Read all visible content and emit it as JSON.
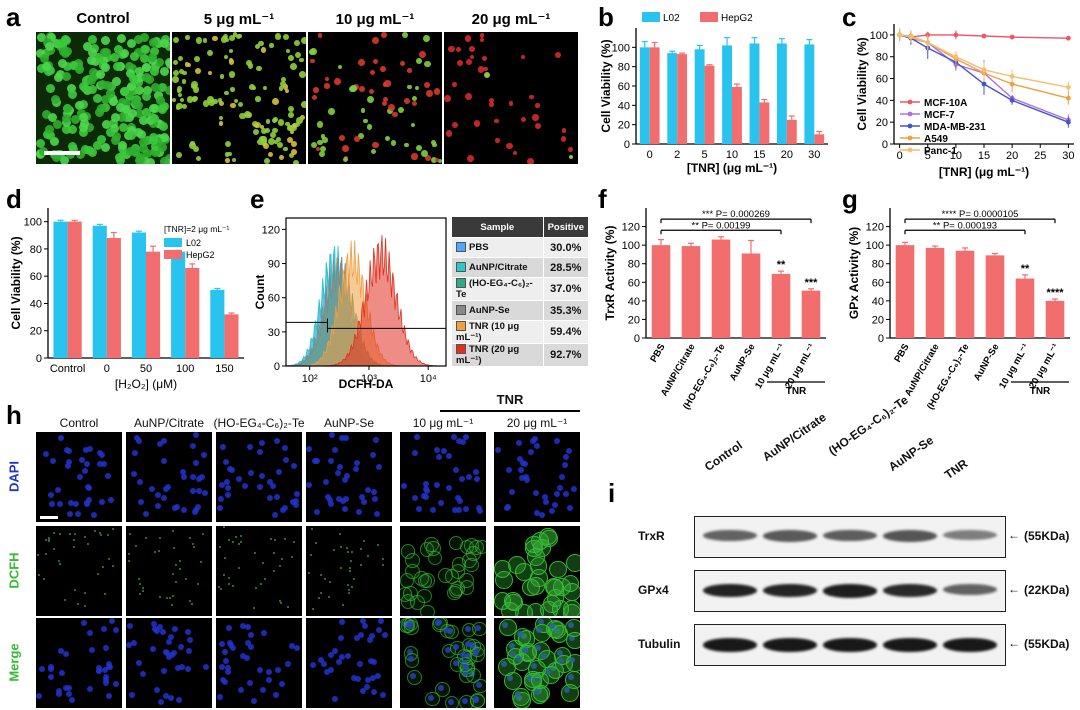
{
  "panels": {
    "a": {
      "letter": "a",
      "labels": [
        "Control",
        "5 μg mL⁻¹",
        "10 μg mL⁻¹",
        "20 μg mL⁻¹"
      ],
      "dot_density": [
        1.0,
        0.55,
        0.3,
        0.15
      ]
    },
    "h": {
      "letter": "h",
      "columns": [
        "Control",
        "AuNP/Citrate",
        "(HO-EG₄-C₆)₂-Te",
        "AuNP-Se",
        "10 μg mL⁻¹",
        "20 μg mL⁻¹"
      ],
      "group_label": "TNR",
      "rows": [
        "DAPI",
        "DCFH",
        "Merge"
      ],
      "dcfh_intensity": [
        0.05,
        0.08,
        0.06,
        0.07,
        0.45,
        0.95
      ],
      "colors": {
        "dapi": "#2233cc",
        "dcfh": "#33bb33"
      }
    },
    "i": {
      "letter": "i",
      "lanes": [
        "Control",
        "AuNP/Citrate",
        "(HO-EG₄-C₆)₂-Te",
        "AuNP-Se",
        "TNR"
      ],
      "proteins": [
        "TrxR",
        "GPx4",
        "Tubulin"
      ],
      "sizes": [
        "(55KDa)",
        "(22KDa)",
        "(55KDa)"
      ],
      "band_intensity": {
        "TrxR": [
          0.55,
          0.6,
          0.58,
          0.62,
          0.4
        ],
        "GPx4": [
          0.9,
          0.88,
          0.92,
          0.86,
          0.55
        ],
        "Tubulin": [
          0.95,
          0.95,
          0.95,
          0.95,
          0.95
        ]
      }
    },
    "e_table": {
      "header": [
        "Sample",
        "Positive"
      ],
      "rows": [
        {
          "sample": "PBS",
          "positive": "30.0%",
          "color": "#4da6ff"
        },
        {
          "sample": "AuNP/Citrate",
          "positive": "28.5%",
          "color": "#29c9c9"
        },
        {
          "sample": "(HO-EG₄-C₆)₂-Te",
          "positive": "37.0%",
          "color": "#2eaa8a"
        },
        {
          "sample": "AuNP-Se",
          "positive": "35.3%",
          "color": "#888888"
        },
        {
          "sample": "TNR (10 μg mL⁻¹)",
          "positive": "59.4%",
          "color": "#f0a040"
        },
        {
          "sample": "TNR (20 μg mL⁻¹)",
          "positive": "92.7%",
          "color": "#e03020"
        }
      ]
    }
  },
  "chart_data": [
    {
      "id": "b",
      "letter": "b",
      "type": "bar",
      "categories": [
        "0",
        "2",
        "5",
        "10",
        "15",
        "20",
        "30"
      ],
      "xlabel": "[TNR] (μg mL⁻¹)",
      "ylabel": "Cell Viability (%)",
      "ylim": [
        0,
        120
      ],
      "yticks": [
        0,
        20,
        40,
        60,
        80,
        100
      ],
      "legend": "top",
      "series": [
        {
          "name": "L02",
          "color": "#29c3f0",
          "values": [
            100,
            94,
            98,
            102,
            104,
            104,
            103
          ],
          "err": [
            6,
            2,
            4,
            8,
            6,
            5,
            5
          ]
        },
        {
          "name": "HepG2",
          "color": "#f26d6d",
          "values": [
            100,
            93,
            81,
            59,
            43,
            25,
            10
          ],
          "err": [
            5,
            1,
            1,
            3,
            3,
            4,
            3
          ]
        }
      ]
    },
    {
      "id": "c",
      "letter": "c",
      "type": "line",
      "x": [
        0,
        2,
        5,
        10,
        15,
        20,
        30
      ],
      "xlabel": "[TNR] (μg mL⁻¹)",
      "ylabel": "Cell Viability (%)",
      "xlim": [
        -1,
        31
      ],
      "xticks": [
        0,
        5,
        10,
        15,
        20,
        25,
        30
      ],
      "ylim": [
        0,
        110
      ],
      "yticks": [
        0,
        20,
        40,
        60,
        80,
        100
      ],
      "legend": "bottom-left",
      "series": [
        {
          "name": "MCF-10A",
          "color": "#ee5566",
          "values": [
            100,
            98,
            100,
            100,
            99,
            98,
            97
          ],
          "err": [
            3,
            3,
            3,
            4,
            2,
            2,
            2
          ]
        },
        {
          "name": "MCF-7",
          "color": "#b070e0",
          "values": [
            100,
            97,
            93,
            73,
            65,
            42,
            22
          ],
          "err": [
            5,
            5,
            8,
            6,
            12,
            3,
            5
          ]
        },
        {
          "name": "MDA-MB-231",
          "color": "#4455cc",
          "values": [
            100,
            97,
            88,
            75,
            55,
            40,
            20
          ],
          "err": [
            5,
            6,
            10,
            6,
            10,
            4,
            5
          ]
        },
        {
          "name": "A549",
          "color": "#f0a040",
          "values": [
            100,
            99,
            93,
            78,
            65,
            55,
            42
          ],
          "err": [
            6,
            5,
            7,
            6,
            8,
            8,
            6
          ]
        },
        {
          "name": "Panc-1",
          "color": "#f2c070",
          "values": [
            100,
            98,
            93,
            80,
            68,
            62,
            52
          ],
          "err": [
            6,
            5,
            7,
            5,
            7,
            6,
            5
          ]
        }
      ]
    },
    {
      "id": "d",
      "letter": "d",
      "type": "bar",
      "categories": [
        "Control",
        "0",
        "50",
        "100",
        "150"
      ],
      "xlabel": "[H₂O₂] (μM)",
      "ylabel": "Cell Viability (%)",
      "ylim": [
        0,
        110
      ],
      "yticks": [
        0,
        20,
        40,
        60,
        80,
        100
      ],
      "legend": "top-right",
      "legend_title": "[TNR]=2 μg mL⁻¹",
      "series": [
        {
          "name": "L02",
          "color": "#29c3f0",
          "values": [
            100,
            97,
            92,
            78,
            50
          ],
          "err": [
            1,
            1,
            1,
            1,
            1
          ]
        },
        {
          "name": "HepG2",
          "color": "#f26d6d",
          "values": [
            100,
            88,
            78,
            66,
            32
          ],
          "err": [
            1,
            4,
            4,
            3,
            1
          ]
        }
      ]
    },
    {
      "id": "e",
      "letter": "e",
      "type": "area",
      "xlabel": "DCFH-DA",
      "ylabel": "Count",
      "xscale": "log",
      "xlim_log": [
        1.6,
        4.3
      ],
      "xticks_log": [
        {
          "v": 2,
          "t": "10²"
        },
        {
          "v": 3,
          "t": "10³"
        },
        {
          "v": 4,
          "t": "10⁴"
        }
      ],
      "ylim": [
        0,
        130
      ],
      "yticks": [
        0,
        30,
        60,
        90,
        120
      ],
      "gate": {
        "y": 33,
        "from_log": 1.6,
        "to_log": 4.3,
        "divider_log": 2.3
      },
      "series": [
        {
          "name": "PBS",
          "color": "#4da6ff",
          "peak_log": 2.42,
          "width": 0.23,
          "height": 110
        },
        {
          "name": "AuNP/Citrate",
          "color": "#29c9c9",
          "peak_log": 2.4,
          "width": 0.22,
          "height": 108
        },
        {
          "name": "(HO-EG₄-C₆)₂-Te",
          "color": "#2eaa8a",
          "peak_log": 2.5,
          "width": 0.24,
          "height": 100
        },
        {
          "name": "AuNP-Se",
          "color": "#888888",
          "peak_log": 2.48,
          "width": 0.24,
          "height": 102
        },
        {
          "name": "TNR (10 μg mL⁻¹)",
          "color": "#f0a040",
          "peak_log": 2.72,
          "width": 0.23,
          "height": 112
        },
        {
          "name": "TNR (20 μg mL⁻¹)",
          "color": "#e03020",
          "peak_log": 3.2,
          "width": 0.26,
          "height": 118
        }
      ]
    },
    {
      "id": "f",
      "letter": "f",
      "type": "bar",
      "categories": [
        "PBS",
        "AuNP/Citrate",
        "(HO-EG₄-C₆)₂-Te",
        "AuNP-Se",
        "10 μg mL⁻¹",
        "20 μg mL⁻¹"
      ],
      "group_label": "TNR",
      "group_indices": [
        4,
        5
      ],
      "ylabel": "TrxR Activity (%)",
      "ylim": [
        0,
        140
      ],
      "yticks": [
        0,
        20,
        40,
        60,
        80,
        100,
        120
      ],
      "series": [
        {
          "name": "",
          "color": "#f26d6d",
          "values": [
            100,
            99,
            106,
            91,
            69,
            51
          ],
          "err": [
            6,
            3,
            3,
            14,
            3,
            2
          ]
        }
      ],
      "stars": [
        "",
        "",
        "",
        "",
        "**",
        "***"
      ],
      "brackets": [
        {
          "text": "*** P= 0.000269",
          "from": 0,
          "to": 5,
          "y": 128
        },
        {
          "text": "** P= 0.00199",
          "from": 0,
          "to": 4,
          "y": 116
        }
      ]
    },
    {
      "id": "g",
      "letter": "g",
      "type": "bar",
      "categories": [
        "PBS",
        "AuNP/Citrate",
        "(HO-EG₄-C₆)₂-Te",
        "AuNP-Se",
        "10 μg mL⁻¹",
        "20 μg mL⁻¹"
      ],
      "group_label": "TNR",
      "group_indices": [
        4,
        5
      ],
      "ylabel": "GPx Activity (%)",
      "ylim": [
        0,
        140
      ],
      "yticks": [
        0,
        20,
        40,
        60,
        80,
        100,
        120
      ],
      "series": [
        {
          "name": "",
          "color": "#f26d6d",
          "values": [
            100,
            97,
            94,
            89,
            64,
            40
          ],
          "err": [
            3,
            2,
            3,
            2,
            4,
            2
          ]
        }
      ],
      "stars": [
        "",
        "",
        "",
        "",
        "**",
        "****"
      ],
      "brackets": [
        {
          "text": "**** P= 0.0000105",
          "from": 0,
          "to": 5,
          "y": 128
        },
        {
          "text": "** P= 0.000193",
          "from": 0,
          "to": 4,
          "y": 116
        }
      ]
    }
  ]
}
